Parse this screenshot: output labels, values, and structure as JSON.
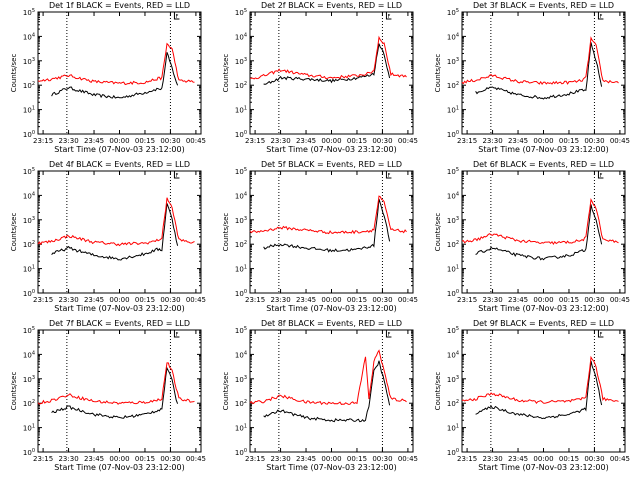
{
  "colors": {
    "events": "#000000",
    "lld": "#ff0000",
    "axes": "#000000",
    "background": "#ffffff"
  },
  "common": {
    "ylabel": "Counts/sec",
    "xlabel": "Start Time (07-Nov-03 23:12:00)",
    "xtick_labels": [
      "23:15",
      "23:30",
      "23:45",
      "00:00",
      "00:15",
      "00:30",
      "00:45"
    ],
    "ytick_mantissa": "10",
    "ytick_exponents": [
      "0",
      "1",
      "2",
      "3",
      "4",
      "5"
    ],
    "flag_label": "F"
  },
  "chart_data": [
    {
      "type": "line",
      "title": "Det 1f BLACK = Events, RED = LLD",
      "x": [
        "23:12",
        "23:20",
        "23:30",
        "23:45",
        "00:00",
        "00:15",
        "00:22",
        "00:25",
        "00:28",
        "00:31",
        "00:35",
        "00:45"
      ],
      "ylim": [
        1,
        100000
      ],
      "yscale": "log",
      "xrange": [
        "23:12",
        "00:48"
      ],
      "vlines": [
        "23:29",
        "00:30"
      ],
      "series": [
        {
          "name": "BLACK = Events",
          "values": [
            null,
            40,
            80,
            40,
            30,
            50,
            70,
            70,
            2000,
            500,
            60,
            null
          ]
        },
        {
          "name": "RED = LLD",
          "values": [
            150,
            180,
            250,
            140,
            120,
            130,
            180,
            200,
            5000,
            3000,
            150,
            140
          ]
        }
      ]
    },
    {
      "type": "line",
      "title": "Det 2f BLACK = Events, RED = LLD",
      "x": [
        "23:12",
        "23:20",
        "23:30",
        "23:45",
        "00:00",
        "00:15",
        "00:22",
        "00:25",
        "00:28",
        "00:31",
        "00:35",
        "00:45"
      ],
      "ylim": [
        1,
        100000
      ],
      "yscale": "log",
      "xrange": [
        "23:12",
        "00:48"
      ],
      "vlines": [
        "23:29",
        "00:30"
      ],
      "series": [
        {
          "name": "BLACK = Events",
          "values": [
            null,
            100,
            200,
            180,
            150,
            200,
            250,
            300,
            5000,
            2000,
            100,
            null
          ]
        },
        {
          "name": "RED = LLD",
          "values": [
            180,
            240,
            420,
            260,
            200,
            250,
            300,
            400,
            9000,
            5000,
            280,
            230
          ]
        }
      ]
    },
    {
      "type": "line",
      "title": "Det 3f BLACK = Events, RED = LLD",
      "x": [
        "23:12",
        "23:20",
        "23:30",
        "23:45",
        "00:00",
        "00:15",
        "00:22",
        "00:25",
        "00:28",
        "00:31",
        "00:35",
        "00:45"
      ],
      "ylim": [
        1,
        100000
      ],
      "yscale": "log",
      "xrange": [
        "23:12",
        "00:48"
      ],
      "vlines": [
        "23:29",
        "00:30"
      ],
      "series": [
        {
          "name": "BLACK = Events",
          "values": [
            null,
            50,
            80,
            40,
            30,
            45,
            60,
            60,
            5000,
            1000,
            50,
            null
          ]
        },
        {
          "name": "RED = LLD",
          "values": [
            130,
            160,
            250,
            140,
            120,
            130,
            150,
            200,
            8000,
            4000,
            150,
            130
          ]
        }
      ]
    },
    {
      "type": "line",
      "title": "Det 4f BLACK = Events, RED = LLD",
      "x": [
        "23:12",
        "23:20",
        "23:30",
        "23:45",
        "00:00",
        "00:15",
        "00:22",
        "00:25",
        "00:28",
        "00:31",
        "00:35",
        "00:45"
      ],
      "ylim": [
        1,
        100000
      ],
      "yscale": "log",
      "xrange": [
        "23:12",
        "00:48"
      ],
      "vlines": [
        "23:29",
        "00:30"
      ],
      "series": [
        {
          "name": "BLACK = Events",
          "values": [
            null,
            40,
            70,
            35,
            25,
            40,
            60,
            60,
            5000,
            1000,
            50,
            null
          ]
        },
        {
          "name": "RED = LLD",
          "values": [
            110,
            130,
            220,
            120,
            100,
            110,
            140,
            180,
            8000,
            3000,
            150,
            110
          ]
        }
      ]
    },
    {
      "type": "line",
      "title": "Det 5f BLACK = Events, RED = LLD",
      "x": [
        "23:12",
        "23:20",
        "23:30",
        "23:45",
        "00:00",
        "00:15",
        "00:22",
        "00:25",
        "00:28",
        "00:31",
        "00:35",
        "00:45"
      ],
      "ylim": [
        1,
        100000
      ],
      "yscale": "log",
      "xrange": [
        "23:12",
        "00:48"
      ],
      "vlines": [
        "23:29",
        "00:30"
      ],
      "series": [
        {
          "name": "BLACK = Events",
          "values": [
            null,
            70,
            100,
            70,
            55,
            60,
            80,
            90,
            7000,
            1500,
            80,
            null
          ]
        },
        {
          "name": "RED = LLD",
          "values": [
            300,
            350,
            480,
            380,
            300,
            320,
            350,
            400,
            9000,
            5000,
            380,
            330
          ]
        }
      ]
    },
    {
      "type": "line",
      "title": "Det 6f BLACK = Events, RED = LLD",
      "x": [
        "23:12",
        "23:20",
        "23:30",
        "23:45",
        "00:00",
        "00:15",
        "00:22",
        "00:25",
        "00:28",
        "00:31",
        "00:35",
        "00:45"
      ],
      "ylim": [
        1,
        100000
      ],
      "yscale": "log",
      "xrange": [
        "23:12",
        "00:48"
      ],
      "vlines": [
        "23:29",
        "00:30"
      ],
      "series": [
        {
          "name": "BLACK = Events",
          "values": [
            null,
            40,
            70,
            35,
            25,
            35,
            50,
            60,
            4000,
            1000,
            50,
            null
          ]
        },
        {
          "name": "RED = LLD",
          "values": [
            120,
            150,
            260,
            140,
            110,
            120,
            140,
            180,
            7000,
            3000,
            150,
            120
          ]
        }
      ]
    },
    {
      "type": "line",
      "title": "Det 7f BLACK = Events, RED = LLD",
      "x": [
        "23:12",
        "23:20",
        "23:30",
        "23:45",
        "00:00",
        "00:15",
        "00:22",
        "00:25",
        "00:28",
        "00:31",
        "00:35",
        "00:45"
      ],
      "ylim": [
        1,
        100000
      ],
      "yscale": "log",
      "xrange": [
        "23:12",
        "00:48"
      ],
      "vlines": [
        "23:29",
        "00:30"
      ],
      "series": [
        {
          "name": "BLACK = Events",
          "values": [
            null,
            40,
            70,
            35,
            25,
            35,
            50,
            60,
            3000,
            800,
            50,
            null
          ]
        },
        {
          "name": "RED = LLD",
          "values": [
            100,
            130,
            220,
            120,
            100,
            110,
            130,
            160,
            5000,
            2000,
            150,
            110
          ]
        }
      ]
    },
    {
      "type": "line",
      "title": "Det 8f BLACK = Events, RED = LLD",
      "x": [
        "23:12",
        "23:20",
        "23:30",
        "23:45",
        "00:00",
        "00:15",
        "00:20",
        "00:22",
        "00:25",
        "00:28",
        "00:31",
        "00:35",
        "00:45"
      ],
      "ylim": [
        1,
        100000
      ],
      "yscale": "log",
      "xrange": [
        "23:12",
        "00:48"
      ],
      "vlines": [
        "23:29",
        "00:30"
      ],
      "series": [
        {
          "name": "BLACK = Events",
          "values": [
            null,
            30,
            50,
            25,
            20,
            20,
            20,
            80,
            2000,
            5000,
            800,
            50,
            null
          ]
        },
        {
          "name": "RED = LLD",
          "values": [
            100,
            120,
            200,
            110,
            100,
            100,
            8000,
            150,
            5000,
            15000,
            2000,
            150,
            120
          ]
        }
      ]
    },
    {
      "type": "line",
      "title": "Det 9f BLACK = Events, RED = LLD",
      "x": [
        "23:12",
        "23:20",
        "23:30",
        "23:45",
        "00:00",
        "00:15",
        "00:22",
        "00:25",
        "00:28",
        "00:31",
        "00:35",
        "00:45"
      ],
      "ylim": [
        1,
        100000
      ],
      "yscale": "log",
      "xrange": [
        "23:12",
        "00:48"
      ],
      "vlines": [
        "23:29",
        "00:30"
      ],
      "series": [
        {
          "name": "BLACK = Events",
          "values": [
            null,
            40,
            70,
            35,
            25,
            35,
            50,
            60,
            5000,
            1000,
            50,
            null
          ]
        },
        {
          "name": "RED = LLD",
          "values": [
            120,
            150,
            250,
            130,
            110,
            120,
            140,
            180,
            8000,
            3000,
            150,
            120
          ]
        }
      ]
    }
  ]
}
